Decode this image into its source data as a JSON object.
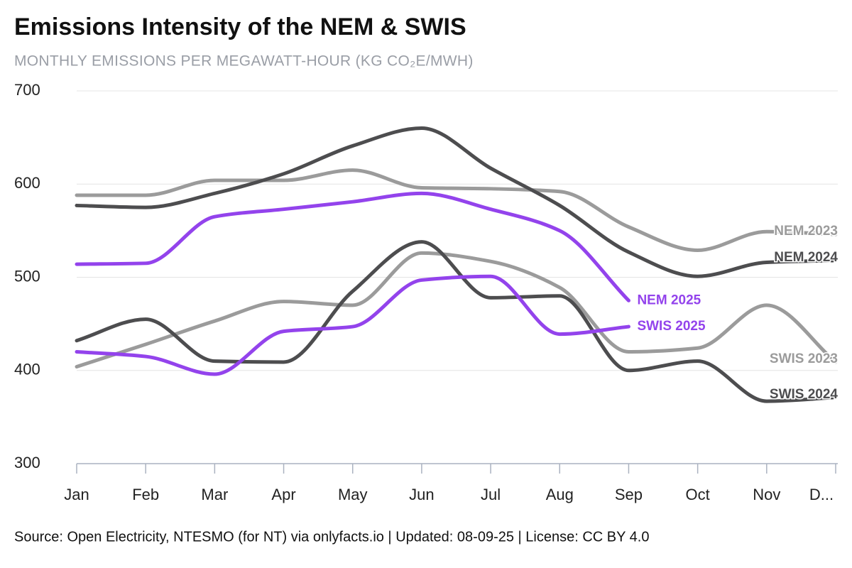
{
  "chart_data": {
    "type": "line",
    "title": "Emissions Intensity of the NEM & SWIS",
    "subtitle": "MONTHLY EMISSIONS PER MEGAWATT-HOUR (KG CO₂E/MWH)",
    "source": "Source: Open Electricity, NTESMO (for NT) via onlyfacts.io | Updated: 08-09-25 | License: CC BY 4.0",
    "categories": [
      "Jan",
      "Feb",
      "Mar",
      "Apr",
      "May",
      "Jun",
      "Jul",
      "Aug",
      "Sep",
      "Oct",
      "Nov",
      "D..."
    ],
    "ylim": [
      300,
      700
    ],
    "yticks": [
      300,
      400,
      500,
      600,
      700
    ],
    "grid": true,
    "series": [
      {
        "name": "NEM 2023",
        "color": "#9b9b9b",
        "values": [
          588,
          588,
          604,
          604,
          615,
          596,
          595,
          592,
          554,
          529,
          549,
          546
        ]
      },
      {
        "name": "NEM 2024",
        "color": "#4d4d4f",
        "values": [
          577,
          575,
          590,
          611,
          641,
          660,
          617,
          577,
          527,
          501,
          516,
          518
        ]
      },
      {
        "name": "NEM 2025",
        "color": "#9343ec",
        "values": [
          514,
          515,
          565,
          573,
          581,
          590,
          573,
          550,
          475,
          null,
          null,
          null
        ]
      },
      {
        "name": "SWIS 2023",
        "color": "#9b9b9b",
        "values": [
          404,
          428,
          453,
          474,
          470,
          526,
          517,
          489,
          420,
          424,
          470,
          409
        ]
      },
      {
        "name": "SWIS 2024",
        "color": "#4d4d4f",
        "values": [
          432,
          455,
          410,
          409,
          485,
          538,
          478,
          480,
          400,
          410,
          367,
          371
        ]
      },
      {
        "name": "SWIS 2025",
        "color": "#9343ec",
        "values": [
          420,
          415,
          396,
          442,
          447,
          497,
          501,
          439,
          447,
          null,
          null,
          null
        ]
      }
    ]
  }
}
